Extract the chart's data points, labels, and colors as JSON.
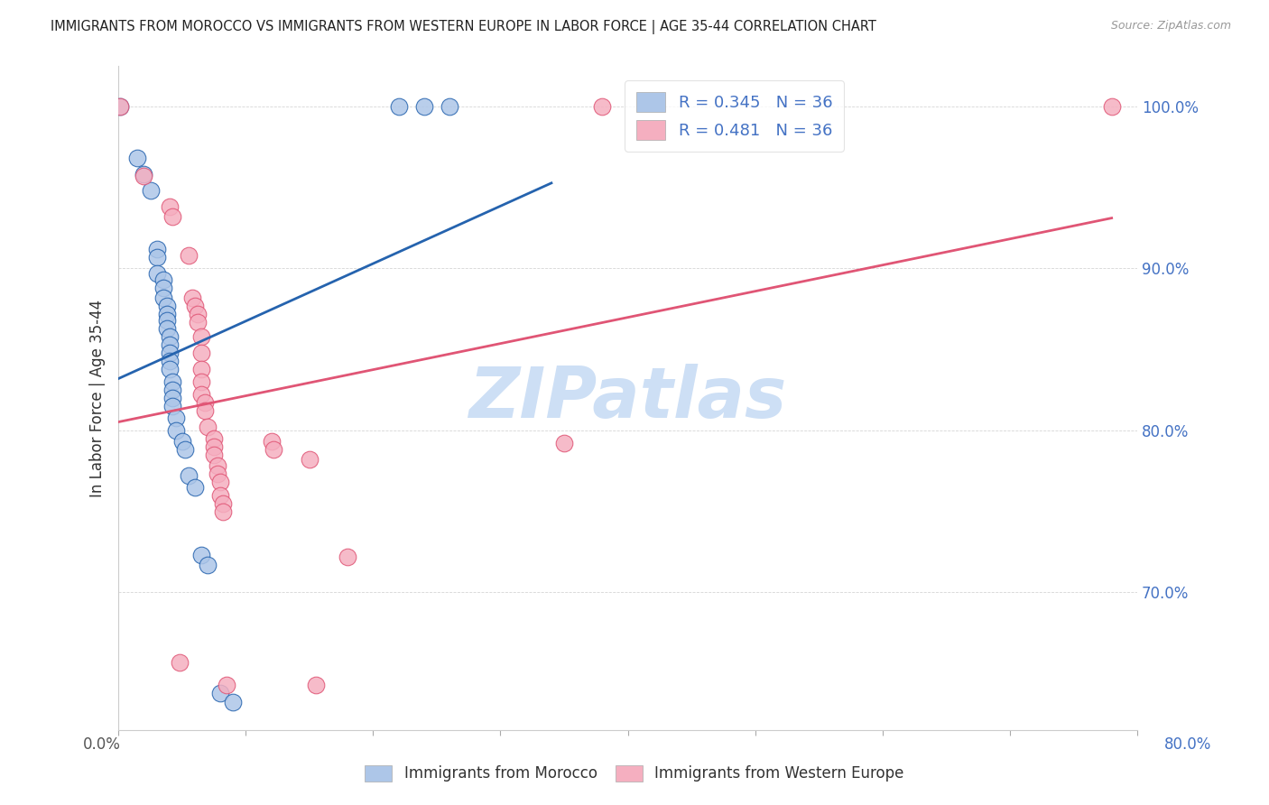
{
  "title": "IMMIGRANTS FROM MOROCCO VS IMMIGRANTS FROM WESTERN EUROPE IN LABOR FORCE | AGE 35-44 CORRELATION CHART",
  "source": "Source: ZipAtlas.com",
  "ylabel": "In Labor Force | Age 35-44",
  "xmin": 0.0,
  "xmax": 0.8,
  "ymin": 0.615,
  "ymax": 1.025,
  "R_blue": 0.345,
  "R_pink": 0.481,
  "N_blue": 36,
  "N_pink": 36,
  "blue_color": "#adc6e8",
  "pink_color": "#f5afc0",
  "blue_line_color": "#2563ae",
  "pink_line_color": "#e05575",
  "blue_scatter": [
    [
      0.001,
      1.0
    ],
    [
      0.015,
      0.968
    ],
    [
      0.02,
      0.958
    ],
    [
      0.025,
      0.948
    ],
    [
      0.03,
      0.912
    ],
    [
      0.03,
      0.907
    ],
    [
      0.03,
      0.897
    ],
    [
      0.035,
      0.893
    ],
    [
      0.035,
      0.888
    ],
    [
      0.035,
      0.882
    ],
    [
      0.038,
      0.877
    ],
    [
      0.038,
      0.872
    ],
    [
      0.038,
      0.868
    ],
    [
      0.038,
      0.863
    ],
    [
      0.04,
      0.858
    ],
    [
      0.04,
      0.853
    ],
    [
      0.04,
      0.848
    ],
    [
      0.04,
      0.843
    ],
    [
      0.04,
      0.838
    ],
    [
      0.042,
      0.83
    ],
    [
      0.042,
      0.825
    ],
    [
      0.042,
      0.82
    ],
    [
      0.042,
      0.815
    ],
    [
      0.045,
      0.808
    ],
    [
      0.045,
      0.8
    ],
    [
      0.05,
      0.793
    ],
    [
      0.052,
      0.788
    ],
    [
      0.055,
      0.772
    ],
    [
      0.06,
      0.765
    ],
    [
      0.065,
      0.723
    ],
    [
      0.07,
      0.717
    ],
    [
      0.08,
      0.638
    ],
    [
      0.09,
      0.632
    ],
    [
      0.22,
      1.0
    ],
    [
      0.24,
      1.0
    ],
    [
      0.26,
      1.0
    ]
  ],
  "pink_scatter": [
    [
      0.001,
      1.0
    ],
    [
      0.02,
      0.957
    ],
    [
      0.04,
      0.938
    ],
    [
      0.042,
      0.932
    ],
    [
      0.055,
      0.908
    ],
    [
      0.058,
      0.882
    ],
    [
      0.06,
      0.877
    ],
    [
      0.062,
      0.872
    ],
    [
      0.062,
      0.867
    ],
    [
      0.065,
      0.858
    ],
    [
      0.065,
      0.848
    ],
    [
      0.065,
      0.838
    ],
    [
      0.065,
      0.83
    ],
    [
      0.065,
      0.822
    ],
    [
      0.068,
      0.817
    ],
    [
      0.068,
      0.812
    ],
    [
      0.07,
      0.802
    ],
    [
      0.075,
      0.795
    ],
    [
      0.075,
      0.79
    ],
    [
      0.075,
      0.785
    ],
    [
      0.078,
      0.778
    ],
    [
      0.078,
      0.773
    ],
    [
      0.08,
      0.768
    ],
    [
      0.08,
      0.76
    ],
    [
      0.082,
      0.755
    ],
    [
      0.082,
      0.75
    ],
    [
      0.12,
      0.793
    ],
    [
      0.122,
      0.788
    ],
    [
      0.15,
      0.782
    ],
    [
      0.18,
      0.722
    ],
    [
      0.35,
      0.792
    ],
    [
      0.048,
      0.657
    ],
    [
      0.085,
      0.643
    ],
    [
      0.155,
      0.643
    ],
    [
      0.78,
      1.0
    ],
    [
      0.38,
      1.0
    ]
  ],
  "watermark_text": "ZIPatlas",
  "watermark_color": "#cddff5",
  "legend_label_blue": "R = 0.345   N = 36",
  "legend_label_pink": "R = 0.481   N = 36",
  "legend_text_color": "#4472c4",
  "background_color": "#ffffff",
  "grid_color": "#cccccc",
  "ytick_color": "#4472c4",
  "xtick_label_left": "0.0%",
  "xtick_label_right": "80.0%"
}
